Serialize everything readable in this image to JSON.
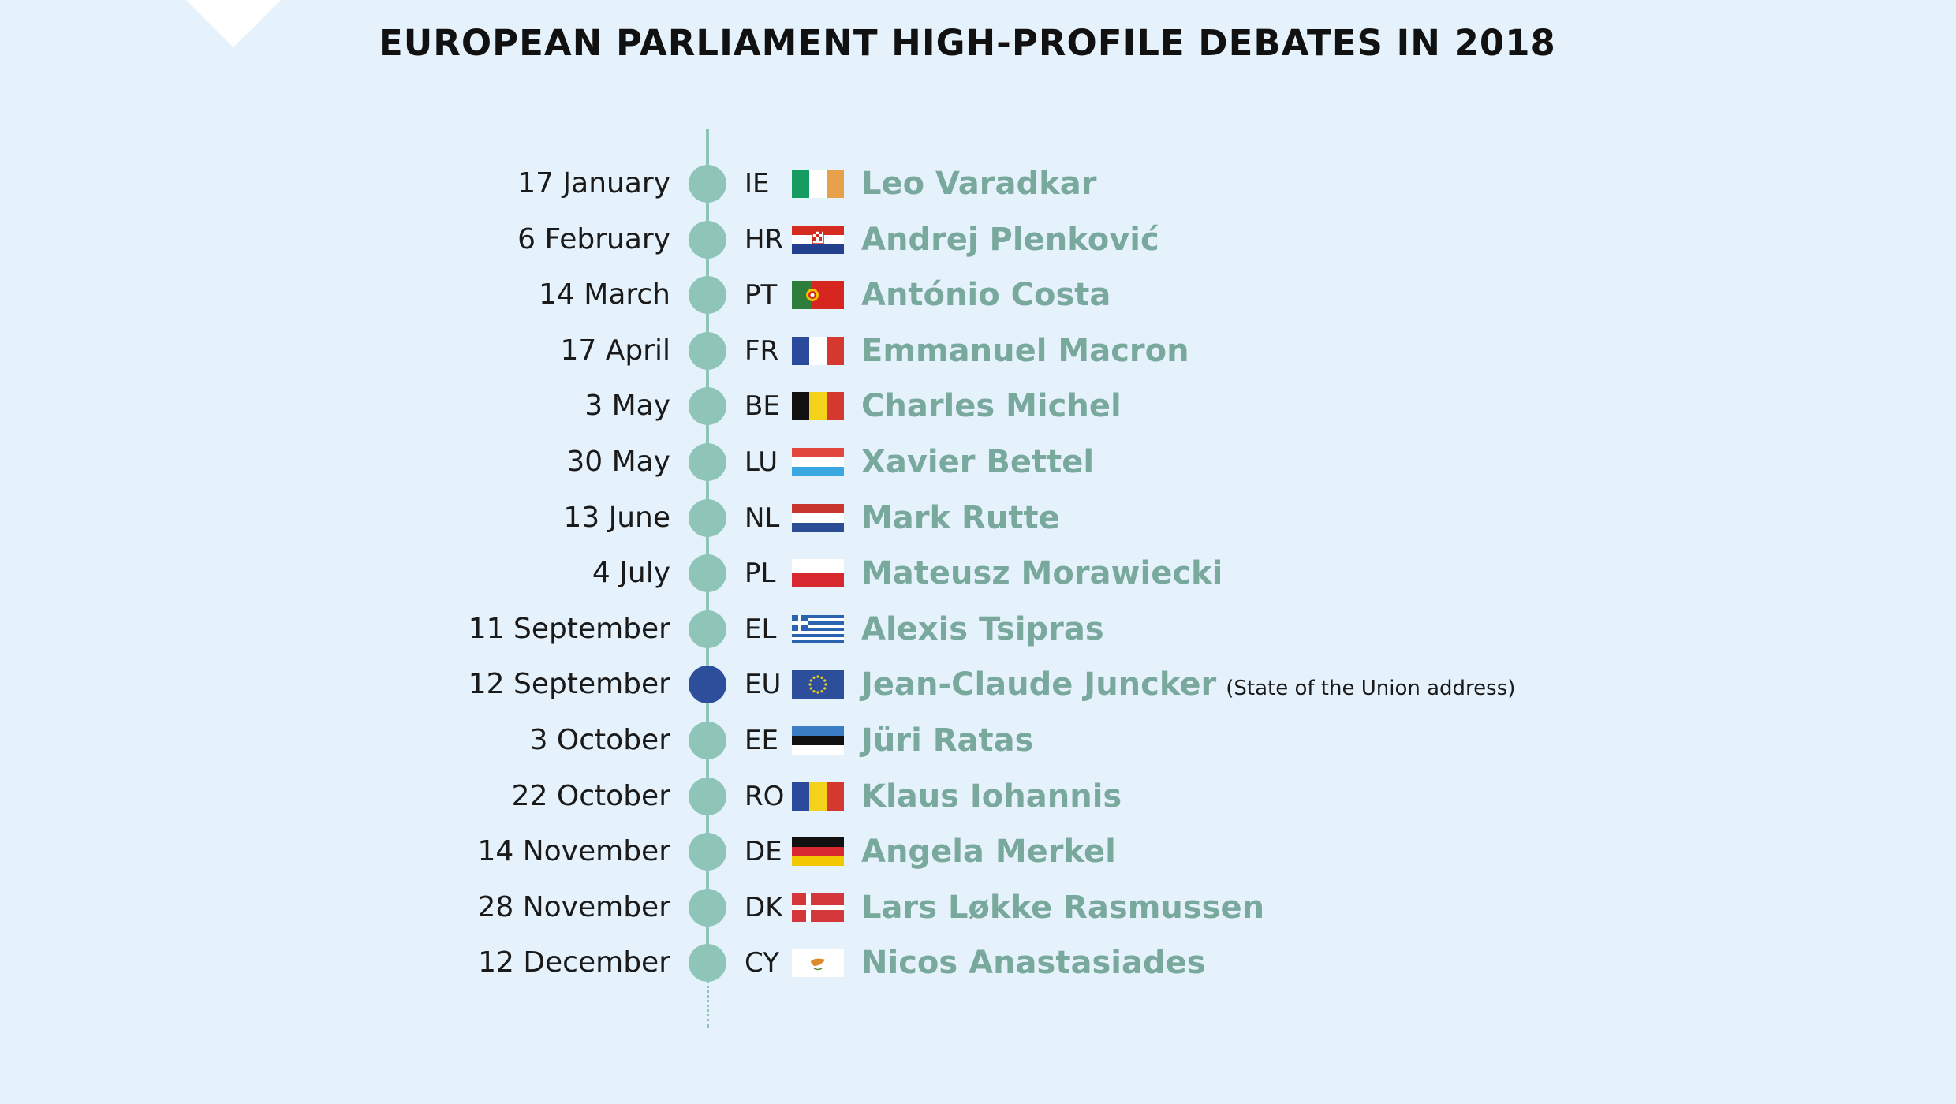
{
  "title": "EUROPEAN PARLIAMENT HIGH-PROFILE DEBATES IN 2018",
  "colors": {
    "background": "#e5f2fb",
    "timeline": "#8ec5b8",
    "eu_dot": "#2d4f9b",
    "name_text": "#79a99d"
  },
  "debates": [
    {
      "date": "17 January",
      "code": "IE",
      "name": "Leo Varadkar",
      "note": ""
    },
    {
      "date": "6 February",
      "code": "HR",
      "name": "Andrej Plenković",
      "note": ""
    },
    {
      "date": "14 March",
      "code": "PT",
      "name": "António Costa",
      "note": ""
    },
    {
      "date": "17 April",
      "code": "FR",
      "name": "Emmanuel Macron",
      "note": ""
    },
    {
      "date": "3 May",
      "code": "BE",
      "name": "Charles Michel",
      "note": ""
    },
    {
      "date": "30 May",
      "code": "LU",
      "name": "Xavier Bettel",
      "note": ""
    },
    {
      "date": "13 June",
      "code": "NL",
      "name": "Mark Rutte",
      "note": ""
    },
    {
      "date": "4 July",
      "code": "PL",
      "name": "Mateusz Morawiecki",
      "note": ""
    },
    {
      "date": "11 September",
      "code": "EL",
      "name": "Alexis Tsipras",
      "note": ""
    },
    {
      "date": "12 September",
      "code": "EU",
      "name": "Jean-Claude Juncker",
      "note": "(State of the Union address)"
    },
    {
      "date": "3 October",
      "code": "EE",
      "name": "Jüri Ratas",
      "note": ""
    },
    {
      "date": "22 October",
      "code": "RO",
      "name": "Klaus Iohannis",
      "note": ""
    },
    {
      "date": "14 November",
      "code": "DE",
      "name": "Angela Merkel",
      "note": ""
    },
    {
      "date": "28 November",
      "code": "DK",
      "name": "Lars Løkke Rasmussen",
      "note": ""
    },
    {
      "date": "12 December",
      "code": "CY",
      "name": "Nicos Anastasiades",
      "note": ""
    }
  ]
}
